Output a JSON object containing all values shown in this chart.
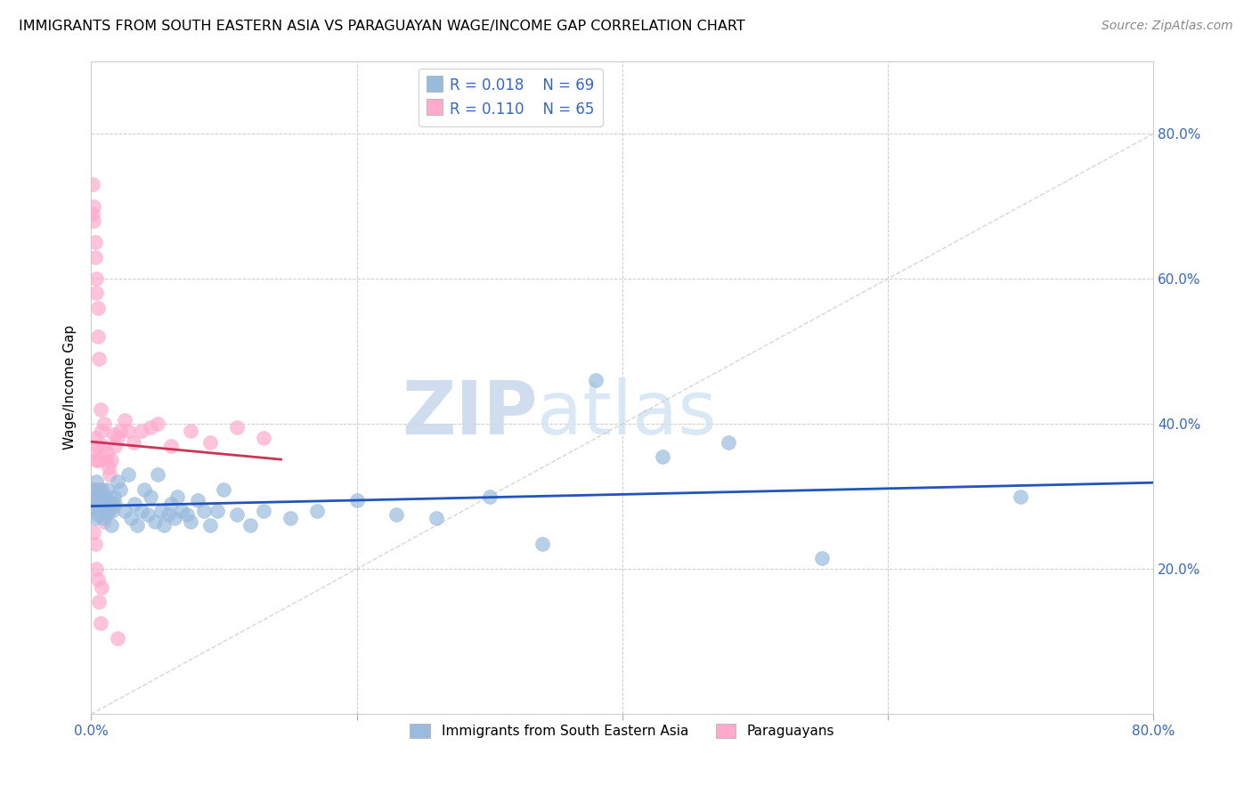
{
  "title": "IMMIGRANTS FROM SOUTH EASTERN ASIA VS PARAGUAYAN WAGE/INCOME GAP CORRELATION CHART",
  "source": "Source: ZipAtlas.com",
  "ylabel": "Wage/Income Gap",
  "legend_blue_r": "R = 0.018",
  "legend_blue_n": "N = 69",
  "legend_pink_r": "R = 0.110",
  "legend_pink_n": "N = 65",
  "legend_label_blue": "Immigrants from South Eastern Asia",
  "legend_label_pink": "Paraguayans",
  "blue_color": "#99BBDD",
  "pink_color": "#FFAACC",
  "blue_line_color": "#2255BB",
  "pink_line_color": "#CC3355",
  "diag_line_color": "#CCCCCC",
  "watermark_zip": "ZIP",
  "watermark_atlas": "atlas",
  "xlim": [
    0.0,
    0.8
  ],
  "ylim": [
    0.0,
    0.9
  ],
  "blue_scatter_x": [
    0.001,
    0.002,
    0.003,
    0.003,
    0.004,
    0.004,
    0.005,
    0.005,
    0.006,
    0.006,
    0.007,
    0.007,
    0.008,
    0.008,
    0.009,
    0.009,
    0.01,
    0.01,
    0.011,
    0.011,
    0.012,
    0.013,
    0.014,
    0.015,
    0.016,
    0.017,
    0.018,
    0.02,
    0.022,
    0.025,
    0.028,
    0.03,
    0.033,
    0.035,
    0.038,
    0.04,
    0.043,
    0.045,
    0.048,
    0.05,
    0.053,
    0.055,
    0.058,
    0.06,
    0.063,
    0.065,
    0.068,
    0.072,
    0.075,
    0.08,
    0.085,
    0.09,
    0.095,
    0.1,
    0.11,
    0.12,
    0.13,
    0.15,
    0.17,
    0.2,
    0.23,
    0.26,
    0.3,
    0.34,
    0.38,
    0.43,
    0.48,
    0.55,
    0.7
  ],
  "blue_scatter_y": [
    0.295,
    0.31,
    0.285,
    0.27,
    0.3,
    0.32,
    0.29,
    0.275,
    0.305,
    0.285,
    0.295,
    0.31,
    0.28,
    0.295,
    0.27,
    0.29,
    0.3,
    0.285,
    0.275,
    0.295,
    0.31,
    0.28,
    0.295,
    0.26,
    0.28,
    0.3,
    0.29,
    0.32,
    0.31,
    0.28,
    0.33,
    0.27,
    0.29,
    0.26,
    0.28,
    0.31,
    0.275,
    0.3,
    0.265,
    0.33,
    0.28,
    0.26,
    0.275,
    0.29,
    0.27,
    0.3,
    0.28,
    0.275,
    0.265,
    0.295,
    0.28,
    0.26,
    0.28,
    0.31,
    0.275,
    0.26,
    0.28,
    0.27,
    0.28,
    0.295,
    0.275,
    0.27,
    0.3,
    0.235,
    0.46,
    0.355,
    0.375,
    0.215,
    0.3
  ],
  "pink_scatter_x": [
    0.001,
    0.001,
    0.001,
    0.002,
    0.002,
    0.002,
    0.002,
    0.003,
    0.003,
    0.003,
    0.003,
    0.004,
    0.004,
    0.004,
    0.004,
    0.005,
    0.005,
    0.005,
    0.005,
    0.006,
    0.006,
    0.006,
    0.007,
    0.007,
    0.008,
    0.008,
    0.009,
    0.009,
    0.01,
    0.01,
    0.011,
    0.011,
    0.012,
    0.012,
    0.013,
    0.014,
    0.015,
    0.016,
    0.017,
    0.018,
    0.02,
    0.022,
    0.025,
    0.028,
    0.032,
    0.038,
    0.045,
    0.05,
    0.06,
    0.075,
    0.09,
    0.11,
    0.13,
    0.002,
    0.003,
    0.004,
    0.005,
    0.006,
    0.007,
    0.008,
    0.009,
    0.01,
    0.015,
    0.02,
    0.012
  ],
  "pink_scatter_y": [
    0.73,
    0.69,
    0.31,
    0.7,
    0.68,
    0.36,
    0.29,
    0.65,
    0.63,
    0.38,
    0.31,
    0.6,
    0.58,
    0.35,
    0.3,
    0.56,
    0.52,
    0.37,
    0.31,
    0.49,
    0.35,
    0.31,
    0.42,
    0.3,
    0.39,
    0.31,
    0.37,
    0.3,
    0.4,
    0.3,
    0.35,
    0.295,
    0.36,
    0.29,
    0.34,
    0.33,
    0.35,
    0.29,
    0.385,
    0.37,
    0.38,
    0.39,
    0.405,
    0.39,
    0.375,
    0.39,
    0.395,
    0.4,
    0.37,
    0.39,
    0.375,
    0.395,
    0.38,
    0.25,
    0.235,
    0.2,
    0.185,
    0.155,
    0.125,
    0.175,
    0.29,
    0.265,
    0.285,
    0.105,
    0.285
  ]
}
